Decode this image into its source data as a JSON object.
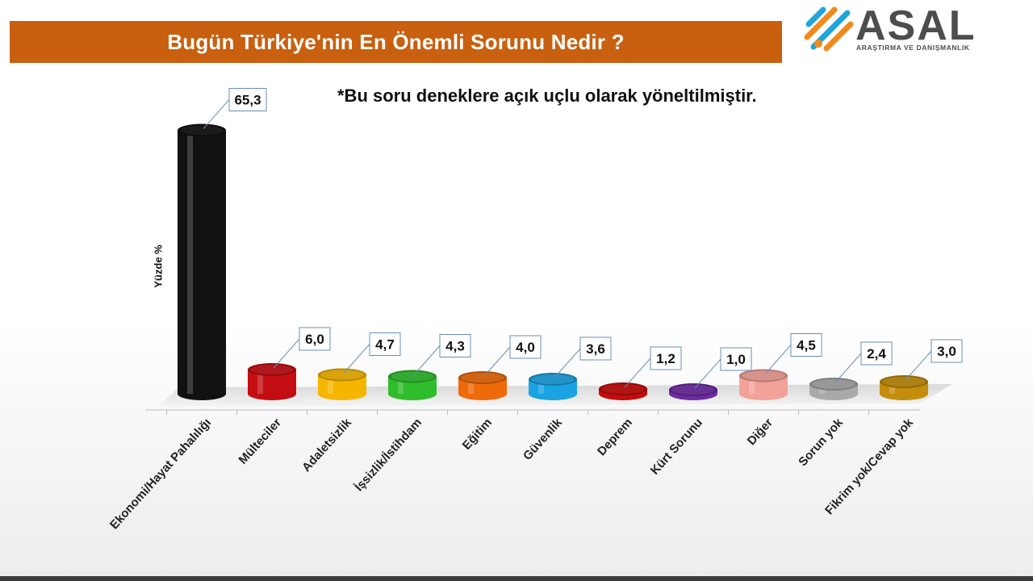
{
  "header": {
    "title": "Bugün Türkiye'nin En Önemli Sorunu Nedir ?"
  },
  "logo": {
    "brand": "ASAL",
    "tagline": "ARAŞTIRMA VE DANIŞMANLIK"
  },
  "note": "*Bu soru deneklere açık uçlu olarak yöneltilmiştir.",
  "chart_data": {
    "type": "bar",
    "title": "Bugün Türkiye'nin En Önemli Sorunu Nedir ?",
    "ylabel": "Yüzde  %",
    "xlabel": "",
    "ylim": [
      0,
      70
    ],
    "grid": false,
    "legend": "none",
    "categories": [
      "Ekonomi/Hayat Pahalılığı",
      "Mülteciler",
      "Adaletsizlik",
      "İşsizlik/İstihdam",
      "Eğitim",
      "Güvenlik",
      "Deprem",
      "Kürt Sorunu",
      "Diğer",
      "Sorun yok",
      "Fikrim yok/Cevap yok"
    ],
    "values": [
      65.3,
      6.0,
      4.7,
      4.3,
      4.0,
      3.6,
      1.2,
      1.0,
      4.5,
      2.4,
      3.0
    ],
    "value_labels": [
      "65,3",
      "6,0",
      "4,7",
      "4,3",
      "4,0",
      "3,6",
      "1,2",
      "1,0",
      "4,5",
      "2,4",
      "3,0"
    ],
    "colors": [
      "#111111",
      "#c40d12",
      "#f6b600",
      "#2fbd2c",
      "#ee6a0a",
      "#1aa3e2",
      "#c50c0c",
      "#6d2aa3",
      "#f2a299",
      "#a9a9a9",
      "#c48d0c"
    ]
  }
}
